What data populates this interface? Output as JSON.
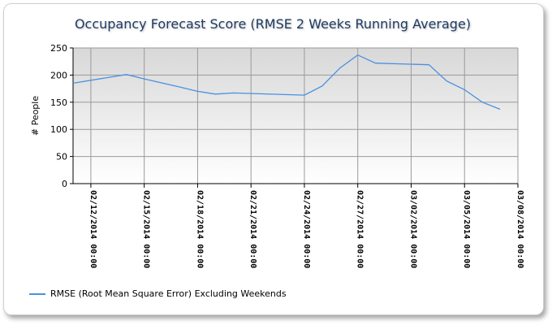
{
  "chart_data": {
    "type": "line",
    "title": "Occupancy Forecast Score (RMSE 2 Weeks Running Average)",
    "ylabel": "# People",
    "xlabel": "",
    "ylim": [
      0,
      250
    ],
    "yticks": [
      0,
      50,
      100,
      150,
      200,
      250
    ],
    "xticks": [
      "02/12/2014 00:00",
      "02/15/2014 00:00",
      "02/18/2014 00:00",
      "02/21/2014 00:00",
      "02/24/2014 00:00",
      "02/27/2014 00:00",
      "03/02/2014 00:00",
      "03/05/2014 00:00",
      "03/08/2014 00:00"
    ],
    "grid": true,
    "legend_position": "bottom-left",
    "series": [
      {
        "name": "RMSE (Root Mean Square Error) Excluding Weekends",
        "color": "#4a90e2",
        "x": [
          "02/11/2014",
          "02/14/2014",
          "02/15/2014",
          "02/17/2014",
          "02/18/2014",
          "02/19/2014",
          "02/20/2014",
          "02/24/2014",
          "02/25/2014",
          "02/26/2014",
          "02/27/2014",
          "02/28/2014",
          "03/03/2014",
          "03/04/2014",
          "03/05/2014",
          "03/06/2014",
          "03/07/2014"
        ],
        "y": [
          185,
          201,
          193,
          178,
          170,
          165,
          167,
          163,
          180,
          213,
          237,
          222,
          219,
          189,
          173,
          150,
          137
        ]
      }
    ]
  }
}
